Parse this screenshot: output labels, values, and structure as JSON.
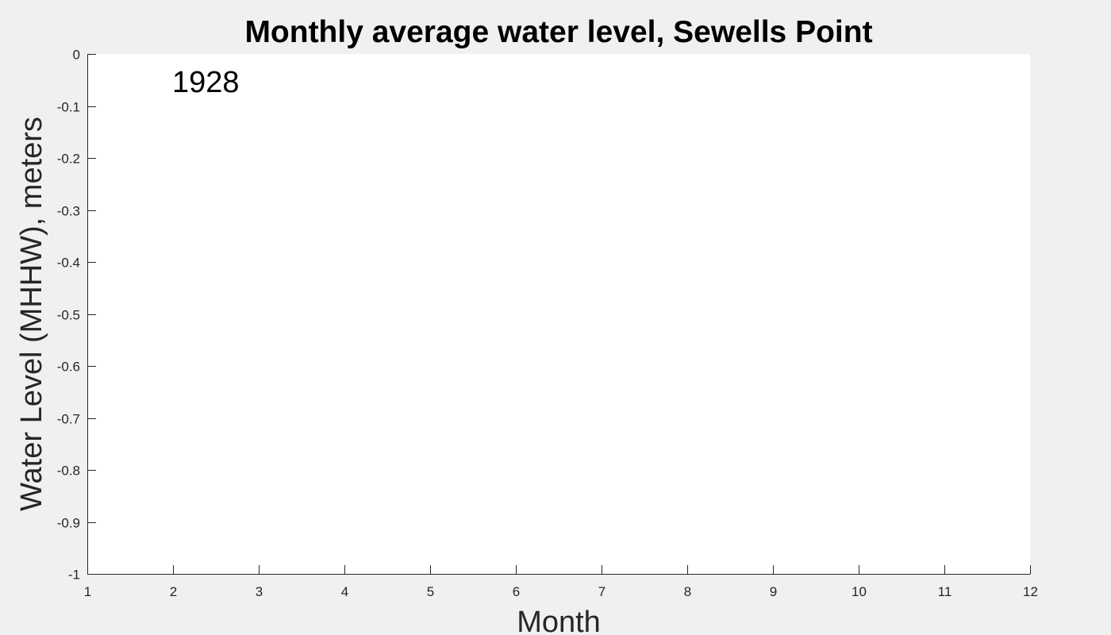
{
  "chart_data": {
    "type": "line",
    "title": "Monthly average water level, Sewells Point",
    "xlabel": "Month",
    "ylabel": "Water Level (MHHW), meters",
    "xlim": [
      1,
      12
    ],
    "ylim": [
      -1,
      0
    ],
    "x_ticks": [
      "1",
      "2",
      "3",
      "4",
      "5",
      "6",
      "7",
      "8",
      "9",
      "10",
      "11",
      "12"
    ],
    "y_ticks": [
      "0",
      "-0.1",
      "-0.2",
      "-0.3",
      "-0.4",
      "-0.5",
      "-0.6",
      "-0.7",
      "-0.8",
      "-0.9",
      "-1"
    ],
    "annotation": "1928",
    "series": [],
    "grid": false,
    "colors": {
      "figure_background": "#f0f0f0",
      "axes_background": "#ffffff",
      "axis_color": "#262626"
    }
  }
}
